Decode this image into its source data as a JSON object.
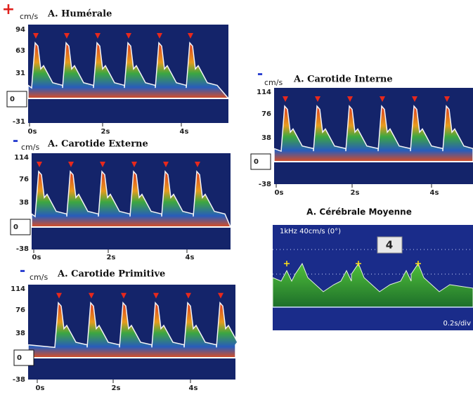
{
  "panels": [
    {
      "sign": "+",
      "unit": "cm/s",
      "title": "A. Humérale",
      "y_labels": [
        "94",
        "63",
        "31",
        "0",
        "-31"
      ],
      "x_labels": [
        "0s",
        "2s",
        "4s"
      ]
    },
    {
      "sign": "-",
      "unit": "cm/s",
      "title": "A. Carotide Externe",
      "y_labels": [
        "114",
        "76",
        "38",
        "0",
        "-38"
      ],
      "x_labels": [
        "0s",
        "2s",
        "4s"
      ]
    },
    {
      "sign": "-",
      "unit": "cm/s",
      "title": "A. Carotide Primitive",
      "y_labels": [
        "114",
        "76",
        "38",
        "0",
        "-38"
      ],
      "x_labels": [
        "0s",
        "2s",
        "4s"
      ]
    },
    {
      "sign": "-",
      "unit": "cm/s",
      "title": "A. Carotide Interne",
      "y_labels": [
        "114",
        "76",
        "38",
        "0",
        "-38"
      ],
      "x_labels": [
        "0s",
        "2s",
        "4s"
      ]
    }
  ],
  "cerebral": {
    "title": "A. Cérébrale Moyenne",
    "settings": "1kHz 40cm/s (0°)",
    "badge": "4",
    "scale": "0.2s/div"
  }
}
